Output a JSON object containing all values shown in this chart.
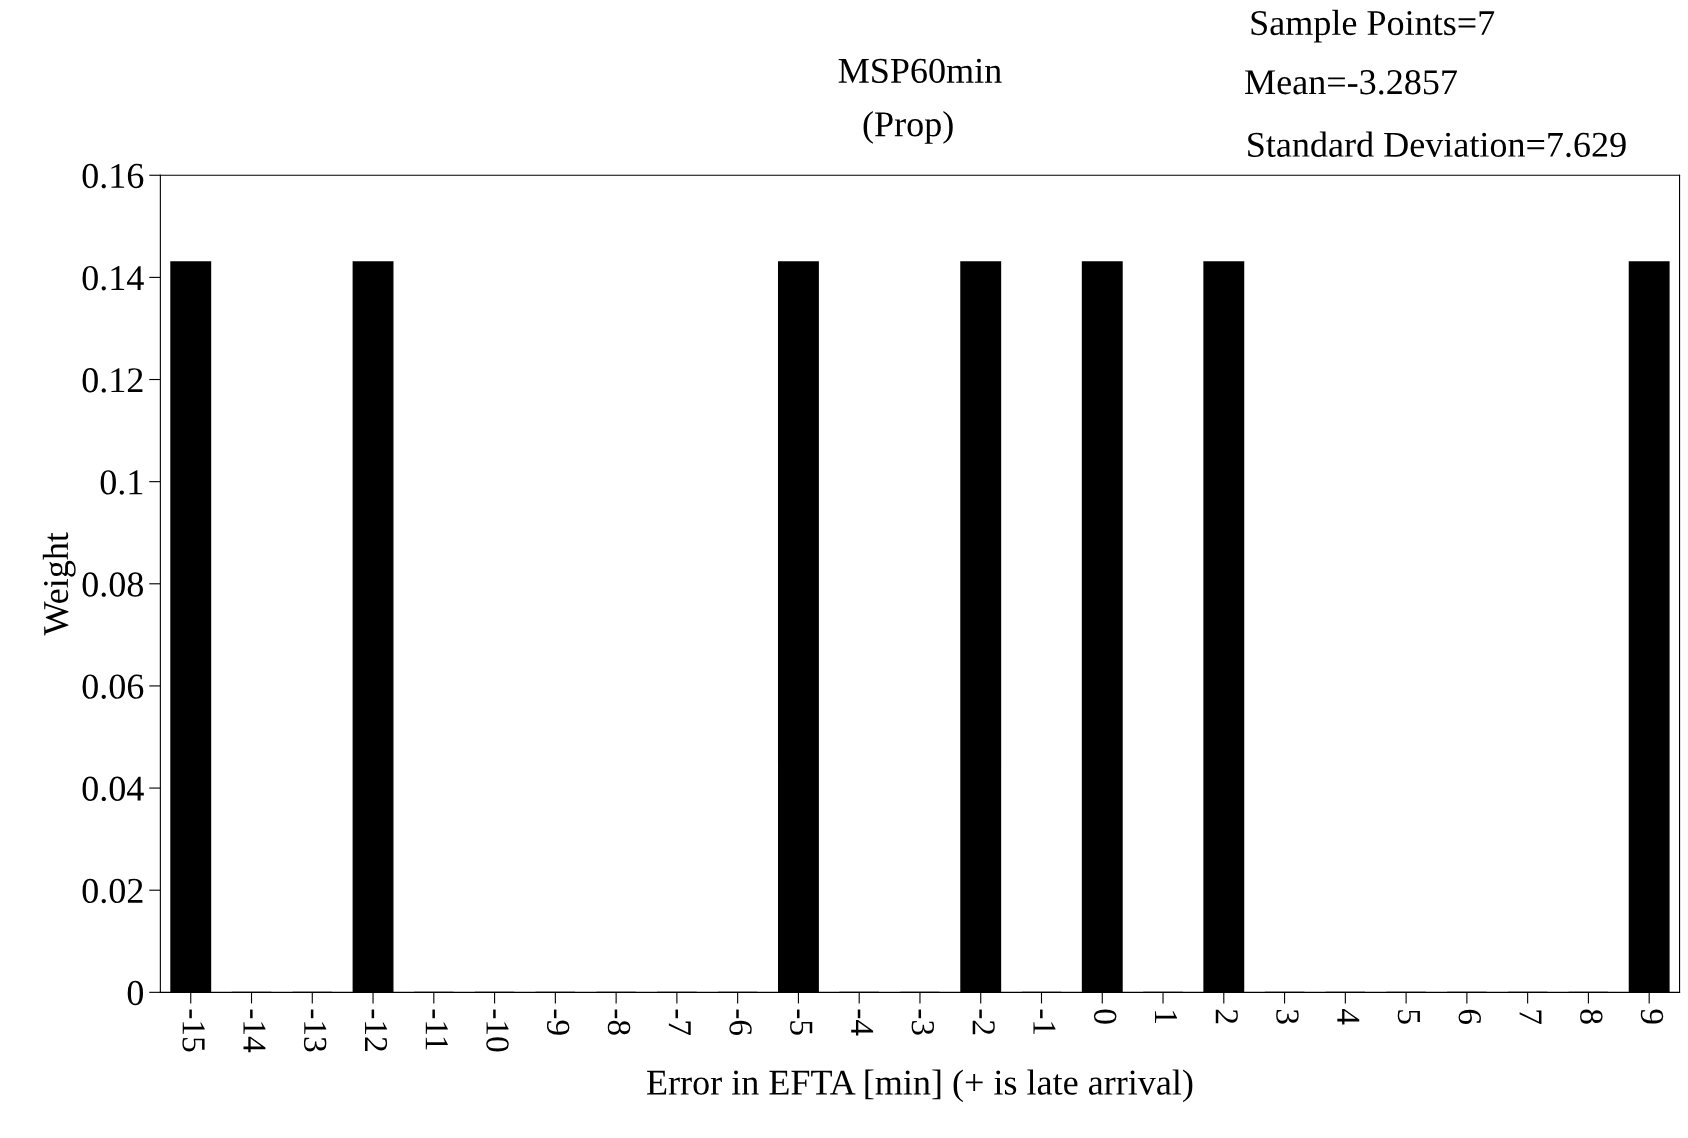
{
  "chart_data": {
    "type": "bar",
    "title": "MSP60min",
    "subtitle": "(Prop)",
    "xlabel": "Error in EFTA [min] (+ is late arrival)",
    "ylabel": "Weight",
    "annotations": [
      "Sample Points=7",
      "Mean=-3.2857",
      "Standard Deviation=7.629"
    ],
    "categories": [
      "-15",
      "-14",
      "-13",
      "-12",
      "-11",
      "-10",
      "-9",
      "-8",
      "-7",
      "-6",
      "-5",
      "-4",
      "-3",
      "-2",
      "-1",
      "0",
      "1",
      "2",
      "3",
      "4",
      "5",
      "6",
      "7",
      "8",
      "9"
    ],
    "values": [
      0.143,
      0,
      0,
      0.143,
      0,
      0,
      0,
      0,
      0,
      0,
      0.143,
      0,
      0,
      0.143,
      0,
      0.143,
      0,
      0.143,
      0,
      0,
      0,
      0,
      0,
      0,
      0.143
    ],
    "color": "#000000",
    "ylim": [
      0,
      0.16
    ],
    "yticks": [
      0,
      0.02,
      0.04,
      0.06,
      0.08,
      0.1,
      0.12,
      0.14,
      0.16
    ],
    "grid": false,
    "legend": false
  }
}
